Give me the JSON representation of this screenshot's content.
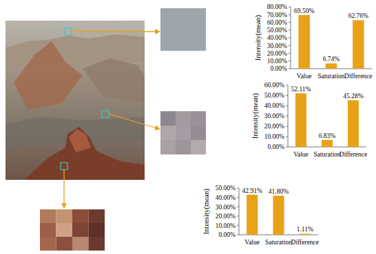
{
  "chart_data": [
    {
      "type": "bar",
      "y_label": "Intensity(mean)",
      "categories": [
        "Value",
        "Saturation",
        "Difference"
      ],
      "values": [
        69.5,
        6.74,
        62.76
      ],
      "value_labels": [
        "69.50%",
        "6.74%",
        "62.76%"
      ],
      "data_labels": true,
      "color": "#e8a21a",
      "ylim": [
        0,
        80
      ],
      "yticks": [
        {
          "value": 0,
          "label": "0.00%"
        },
        {
          "value": 10,
          "label": "10.00%"
        },
        {
          "value": 20,
          "label": "20.00%"
        },
        {
          "value": 30,
          "label": "30.00%"
        },
        {
          "value": 40,
          "label": "40.00%"
        },
        {
          "value": 50,
          "label": "50.00%"
        },
        {
          "value": 60,
          "label": "60.00%"
        },
        {
          "value": 70,
          "label": "70.00%"
        },
        {
          "value": 80,
          "label": "80.00%"
        }
      ]
    },
    {
      "type": "bar",
      "y_label": "Intensity(mean)",
      "categories": [
        "Value",
        "Saturation",
        "Difference"
      ],
      "values": [
        52.11,
        6.83,
        45.28
      ],
      "value_labels": [
        "52.11%",
        "6.83%",
        "45.28%"
      ],
      "data_labels": true,
      "color": "#e8a21a",
      "ylim": [
        0,
        60
      ],
      "yticks": [
        {
          "value": 0,
          "label": "0.00%"
        },
        {
          "value": 10,
          "label": "10.00%"
        },
        {
          "value": 20,
          "label": "20.00%"
        },
        {
          "value": 30,
          "label": "30.00%"
        },
        {
          "value": 40,
          "label": "40.00%"
        },
        {
          "value": 50,
          "label": "50.00%"
        },
        {
          "value": 60,
          "label": "60.00%"
        }
      ]
    },
    {
      "type": "bar",
      "y_label": "Intensity(mean)",
      "categories": [
        "Value",
        "Saturation",
        "Difference"
      ],
      "values": [
        42.91,
        41.8,
        1.11
      ],
      "value_labels": [
        "42.91%",
        "41.80%",
        "1.11%"
      ],
      "data_labels": true,
      "color": "#e8a21a",
      "ylim": [
        0,
        50
      ],
      "yticks": [
        {
          "value": 0,
          "label": "0.00%"
        },
        {
          "value": 10,
          "label": "10.00%"
        },
        {
          "value": 20,
          "label": "20.00%"
        },
        {
          "value": 30,
          "label": "30.00%"
        },
        {
          "value": 40,
          "label": "40.00%"
        },
        {
          "value": 50,
          "label": "50.00%"
        }
      ]
    }
  ]
}
